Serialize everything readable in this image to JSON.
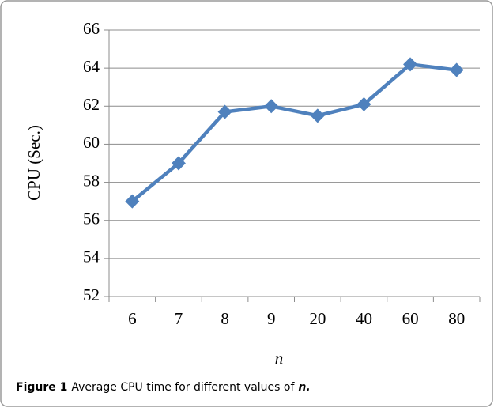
{
  "chart_data": {
    "type": "line",
    "y_label": "CPU (Sec.)",
    "x_label": "n",
    "caption": {
      "label": "Figure 1",
      "text": "Average CPU time for different values of",
      "emph": "n."
    },
    "categories": [
      "6",
      "7",
      "8",
      "9",
      "20",
      "40",
      "60",
      "80"
    ],
    "series": [
      {
        "name": "CPU",
        "color": "#4f81bd",
        "values": [
          57,
          59,
          61.7,
          62,
          61.5,
          62.1,
          64.2,
          63.9
        ]
      }
    ],
    "ylim": [
      52,
      66
    ],
    "yticks": [
      52,
      54,
      56,
      58,
      60,
      62,
      64,
      66
    ],
    "grid": true
  }
}
